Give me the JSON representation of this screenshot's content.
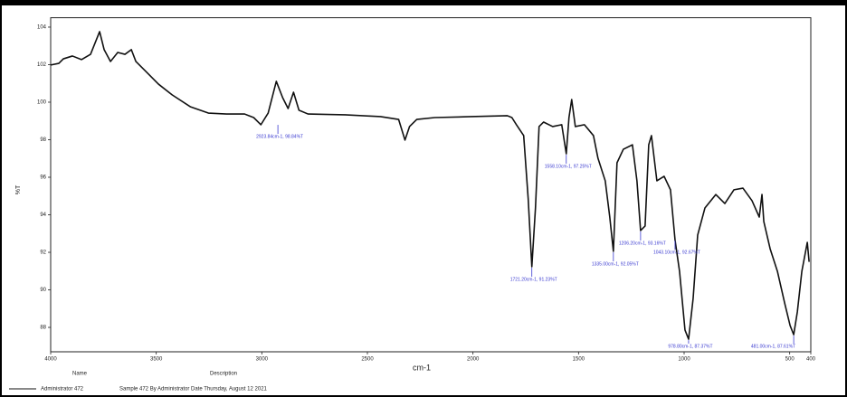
{
  "chart_data": {
    "type": "line",
    "ylabel": "%T",
    "xlabel": "cm-1",
    "xlim": [
      4000,
      400
    ],
    "xticks": [
      4000,
      3500,
      3000,
      2500,
      2000,
      1500,
      1000,
      500,
      400
    ],
    "ylim": [
      86.7,
      104.5
    ],
    "yticks": [
      88,
      90,
      92,
      94,
      96,
      98,
      100,
      102,
      104
    ],
    "x": [
      4000,
      3961.4,
      3939.9,
      3897.0,
      3854.1,
      3811.2,
      3768.2,
      3746.8,
      3716.7,
      3682.4,
      3648.1,
      3618.0,
      3596.6,
      3553.7,
      3489.3,
      3424.9,
      3339.1,
      3253.2,
      3167.4,
      3081.6,
      3038.6,
      3004.3,
      2970.0,
      2931.4,
      2901.3,
      2875.6,
      2849.9,
      2824.1,
      2781.2,
      2609.5,
      2437.8,
      2352.0,
      2322.0,
      2300.5,
      2266.2,
      2180.4,
      2008.7,
      1837.1,
      1815.6,
      1794.2,
      1759.8,
      1738.4,
      1721.2,
      1704.0,
      1686.9,
      1665.4,
      1622.5,
      1579.6,
      1558.1,
      1545.3,
      1532.4,
      1515.2,
      1472.3,
      1429.4,
      1407.9,
      1373.6,
      1352.1,
      1335.0,
      1317.8,
      1287.8,
      1244.8,
      1223.4,
      1206.2,
      1184.8,
      1167.6,
      1154.7,
      1129.0,
      1094.7,
      1064.6,
      1043.1,
      1021.7,
      995.9,
      978.8,
      957.3,
      935.8,
      901.5,
      850.0,
      807.1,
      764.2,
      721.3,
      678.4,
      644.1,
      631.2,
      622.6,
      592.6,
      558.2,
      523.9,
      498.1,
      481.0,
      463.8,
      442.4,
      416.6,
      408.0
    ],
    "series": [
      {
        "color": "#111111",
        "values": [
          101.98,
          102.07,
          102.31,
          102.46,
          102.27,
          102.55,
          103.76,
          102.8,
          102.17,
          102.65,
          102.55,
          102.8,
          102.17,
          101.69,
          100.96,
          100.39,
          99.76,
          99.42,
          99.37,
          99.37,
          99.18,
          98.8,
          99.42,
          101.11,
          100.24,
          99.66,
          100.53,
          99.57,
          99.37,
          99.33,
          99.23,
          99.08,
          97.98,
          98.7,
          99.08,
          99.18,
          99.23,
          99.28,
          99.18,
          98.8,
          98.22,
          94.84,
          91.23,
          94.36,
          98.7,
          98.94,
          98.7,
          98.8,
          97.25,
          99.18,
          100.14,
          98.7,
          98.8,
          98.22,
          97.01,
          95.81,
          93.88,
          92.05,
          96.77,
          97.49,
          97.73,
          95.81,
          93.16,
          93.4,
          97.73,
          98.22,
          95.81,
          96.05,
          95.33,
          92.67,
          90.99,
          87.86,
          87.37,
          89.54,
          92.92,
          94.36,
          95.08,
          94.6,
          95.33,
          95.42,
          94.75,
          93.88,
          95.08,
          93.64,
          92.19,
          90.99,
          89.3,
          88.1,
          87.61,
          88.82,
          90.99,
          92.53,
          91.49
        ]
      }
    ],
    "annotation_color": "#3a3ad0",
    "annotations": [
      {
        "label": "2923.84cm-1, 98.84%T",
        "x": 2923.84,
        "y": 98.84
      },
      {
        "label": "1721.20cm-1, 91.23%T",
        "x": 1721.2,
        "y": 91.23
      },
      {
        "label": "1558.10cm-1, 97.25%T",
        "x": 1558.1,
        "y": 97.25
      },
      {
        "label": "1335.00cm-1, 92.05%T",
        "x": 1335.0,
        "y": 92.05
      },
      {
        "label": "1206.20cm-1, 93.16%T",
        "x": 1206.2,
        "y": 93.16
      },
      {
        "label": "1043.10cm-1, 92.67%T",
        "x": 1043.1,
        "y": 92.67
      },
      {
        "label": "978.80cm-1, 87.37%T",
        "x": 978.8,
        "y": 87.37
      },
      {
        "label": "481.00cm-1, 87.61%T",
        "x": 481.0,
        "y": 87.61
      }
    ],
    "footer": {
      "name_label": "Name",
      "description_label": "Description",
      "entry_name": "Administrator 472",
      "entry_description": "Sample 472 By Administrator Date Thursday, August 12 2021"
    }
  }
}
